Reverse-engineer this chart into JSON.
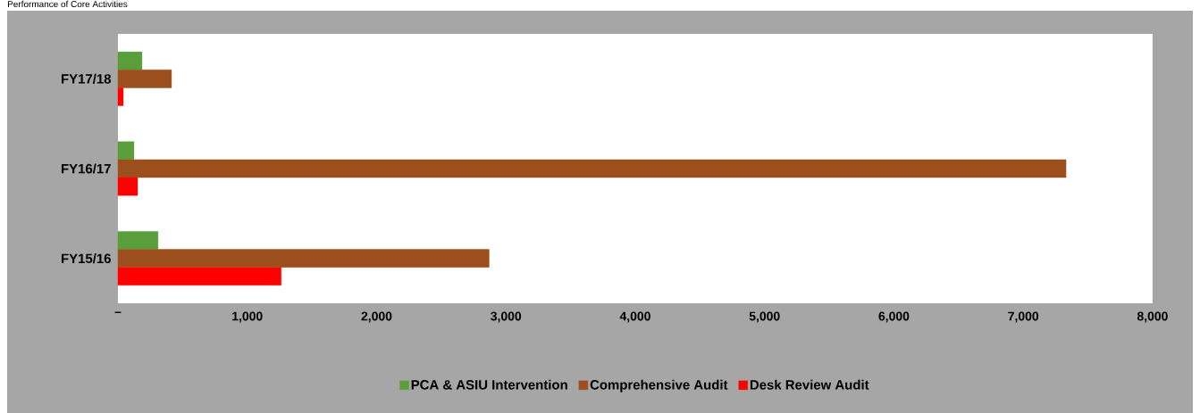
{
  "chart_data": {
    "type": "bar",
    "orientation": "horizontal",
    "title": "Performance of Core Activities",
    "categories": [
      "FY17/18",
      "FY16/17",
      "FY15/16"
    ],
    "series": [
      {
        "name": "PCA & ASIU Intervention",
        "color": "#5a9e3c",
        "values": [
          186,
          124,
          310
        ]
      },
      {
        "name": "Comprehensive Audit",
        "color": "#9c4f1c",
        "values": [
          414,
          7331,
          2870
        ]
      },
      {
        "name": "Desk Review Audit",
        "color": "#ff0000",
        "values": [
          41,
          152,
          1262
        ]
      }
    ],
    "xlim": [
      0,
      8000
    ],
    "xticks": [
      {
        "value": 0,
        "label": "–"
      },
      {
        "value": 1000,
        "label": "1,000"
      },
      {
        "value": 2000,
        "label": "2,000"
      },
      {
        "value": 3000,
        "label": "3,000"
      },
      {
        "value": 4000,
        "label": "4,000"
      },
      {
        "value": 5000,
        "label": "5,000"
      },
      {
        "value": 6000,
        "label": "6,000"
      },
      {
        "value": 7000,
        "label": "7,000"
      },
      {
        "value": 8000,
        "label": "8,000"
      }
    ],
    "grid": false,
    "legend": "bottom"
  }
}
